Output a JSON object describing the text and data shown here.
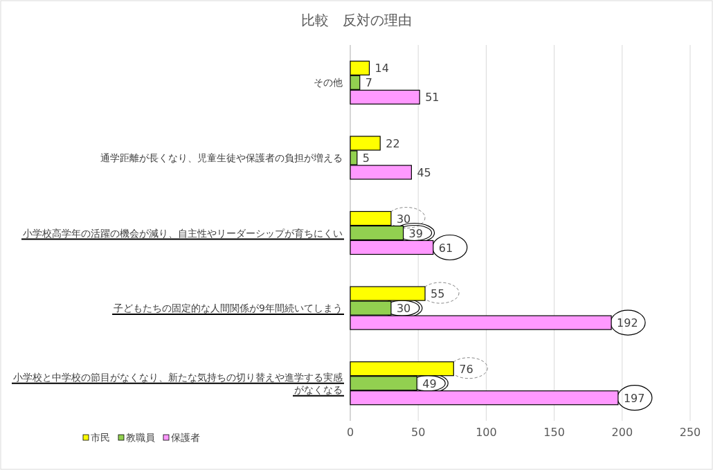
{
  "chart_data": {
    "type": "bar",
    "orientation": "horizontal",
    "title": "比較　反対の理由",
    "categories": [
      "その他",
      "通学距離が長くなり、児童生徒や保護者の負担が増える",
      "小学校高学年の活躍の機会が減り、自主性やリーダーシップが育ちにくい",
      "子どもたちの固定的な人間関係が9年間続いてしまう",
      "小学校と中学校の節目がなくなり、新たな気持ちの切り替えや進学する実感がなくなる"
    ],
    "series": [
      {
        "name": "市民",
        "color": "#ffff00",
        "values": [
          14,
          22,
          30,
          55,
          76
        ]
      },
      {
        "name": "教職員",
        "color": "#92d050",
        "values": [
          7,
          5,
          39,
          30,
          49
        ]
      },
      {
        "name": "保護者",
        "color": "#ff99ff",
        "values": [
          51,
          45,
          61,
          192,
          197
        ]
      }
    ],
    "xlim": [
      0,
      250
    ],
    "xticks": [
      0,
      50,
      100,
      150,
      200,
      250
    ],
    "grid": "x",
    "legend": "bottom left",
    "data_labels": true
  }
}
